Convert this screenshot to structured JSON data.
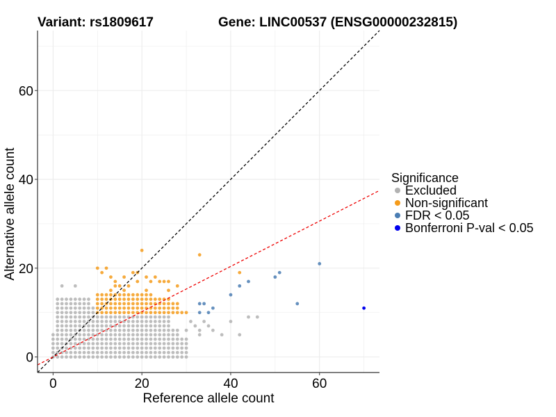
{
  "chart_data": {
    "type": "scatter",
    "title_left": "Variant: rs1809617",
    "title_right": "Gene: LINC00537 (ENSG00000232815)",
    "xlabel": "Reference allele count",
    "ylabel": "Alternative allele count",
    "xlim": [
      -3.5,
      73.5
    ],
    "ylim": [
      -3.5,
      73.5
    ],
    "xticks": [
      0,
      20,
      40,
      60
    ],
    "yticks": [
      0,
      20,
      40,
      60
    ],
    "grid": true,
    "legend_position": "right",
    "legend": {
      "title": "Significance",
      "entries": [
        {
          "key": "excluded",
          "label": "Excluded",
          "color": "#b2b2b2"
        },
        {
          "key": "nonsig",
          "label": "Non-significant",
          "color": "#f59b1a"
        },
        {
          "key": "fdr",
          "label": "FDR < 0.05",
          "color": "#4a7db3"
        },
        {
          "key": "bonf",
          "label": "Bonferroni P-val < 0.05",
          "color": "#0000ee"
        }
      ]
    },
    "reference_lines": [
      {
        "name": "identity",
        "slope": 1.0,
        "intercept": 0,
        "color": "#000000",
        "dash": "dashed"
      },
      {
        "name": "fit",
        "slope": 0.51,
        "intercept": 0,
        "color": "#ee0000",
        "dash": "dashed"
      }
    ],
    "series": [
      {
        "name": "Excluded",
        "color": "#b2b2b2",
        "grid_region": {
          "x_range": [
            0,
            30
          ],
          "y_range": [
            0,
            13
          ],
          "density_limit": "decreasing with x"
        },
        "extra_points": [
          [
            2,
            16
          ],
          [
            5,
            16
          ],
          [
            31,
            8
          ],
          [
            32,
            7
          ],
          [
            33,
            6
          ],
          [
            34,
            8
          ],
          [
            35,
            7
          ],
          [
            36,
            6
          ],
          [
            38,
            5
          ],
          [
            40,
            8
          ],
          [
            42,
            5
          ],
          [
            44,
            9
          ],
          [
            46,
            9
          ],
          [
            33,
            5
          ],
          [
            30,
            6
          ]
        ]
      },
      {
        "name": "Non-significant",
        "color": "#f59b1a",
        "grid_region": {
          "x_range": [
            10,
            30
          ],
          "y_range": [
            10,
            14
          ]
        },
        "extra_points": [
          [
            10,
            20
          ],
          [
            12,
            20
          ],
          [
            11,
            19
          ],
          [
            13,
            18
          ],
          [
            14,
            17
          ],
          [
            15,
            16
          ],
          [
            16,
            18
          ],
          [
            17,
            16
          ],
          [
            18,
            19
          ],
          [
            19,
            19
          ],
          [
            20,
            24
          ],
          [
            21,
            18
          ],
          [
            22,
            17
          ],
          [
            23,
            18
          ],
          [
            24,
            17
          ],
          [
            25,
            17
          ],
          [
            26,
            17
          ],
          [
            28,
            16
          ],
          [
            33,
            23
          ],
          [
            42,
            19
          ],
          [
            19,
            17
          ],
          [
            16,
            15
          ],
          [
            21,
            15
          ],
          [
            26,
            15
          ],
          [
            14,
            16
          ],
          [
            13,
            15
          ]
        ]
      },
      {
        "name": "FDR < 0.05",
        "color": "#4a7db3",
        "points": [
          [
            33,
            12
          ],
          [
            33,
            10
          ],
          [
            34,
            12
          ],
          [
            35,
            10
          ],
          [
            36,
            11
          ],
          [
            40,
            14
          ],
          [
            42,
            16
          ],
          [
            44,
            17
          ],
          [
            50,
            18
          ],
          [
            51,
            19
          ],
          [
            55,
            12
          ],
          [
            60,
            21
          ]
        ]
      },
      {
        "name": "Bonferroni P-val < 0.05",
        "color": "#0000ee",
        "points": [
          [
            70,
            11
          ]
        ]
      }
    ]
  }
}
